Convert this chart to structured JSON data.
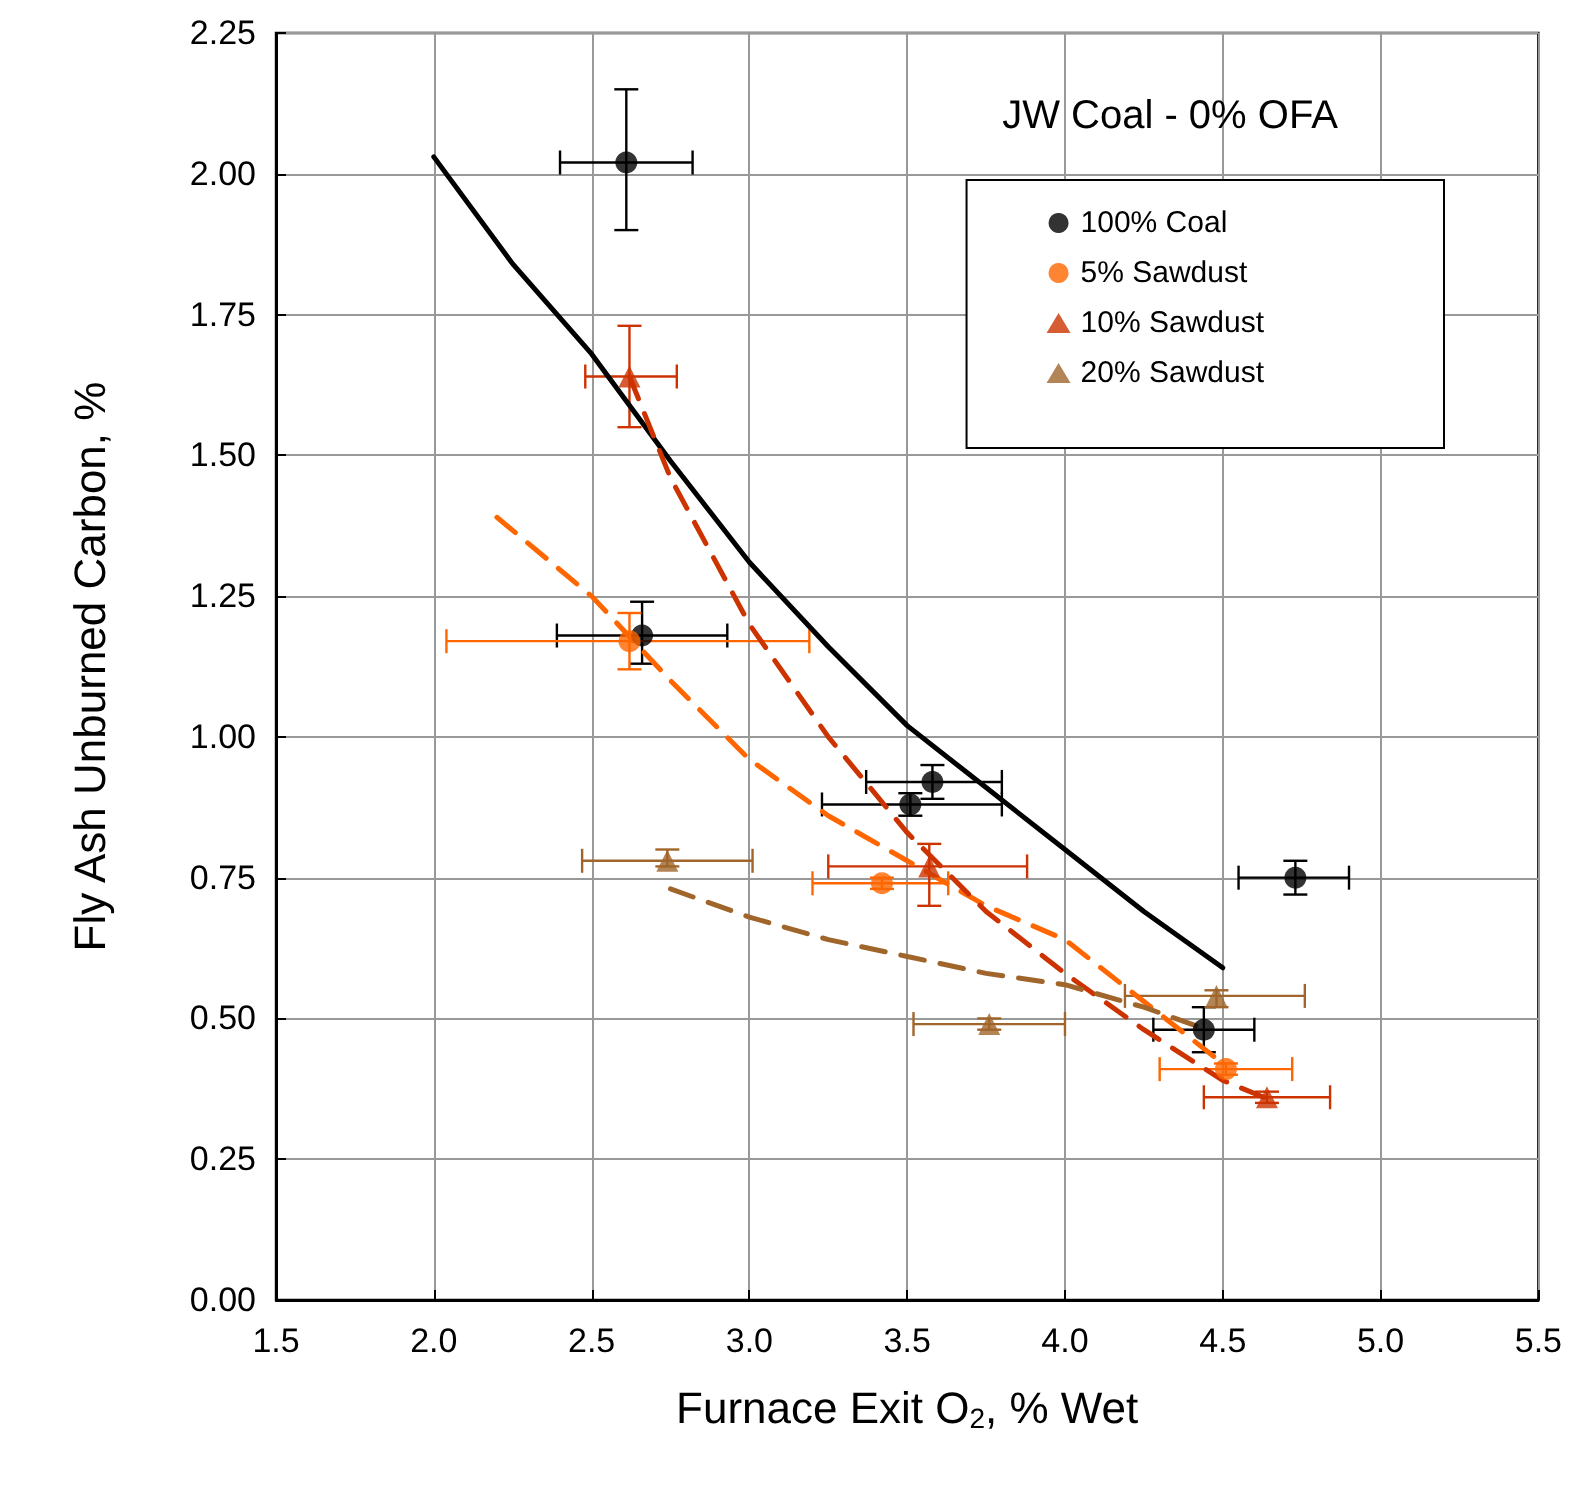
{
  "chart_data": {
    "type": "scatter",
    "xlabel": "Furnace Exit O$_{2}$, % Wet",
    "ylabel": "Fly Ash Unburned Carbon, %",
    "legend_title": "JW Coal - 0% OFA",
    "xlim": [
      1.5,
      5.5
    ],
    "xticks": [
      {
        "value": 1.5,
        "label": "1.5"
      },
      {
        "value": 2,
        "label": "2.0"
      },
      {
        "value": 2.5,
        "label": "2.5"
      },
      {
        "value": 3,
        "label": "3.0"
      },
      {
        "value": 3.5,
        "label": "3.5"
      },
      {
        "value": 4,
        "label": "4.0"
      },
      {
        "value": 4.5,
        "label": "4.5"
      },
      {
        "value": 5,
        "label": "5.0"
      },
      {
        "value": 5.5,
        "label": "5.5"
      }
    ],
    "ylim": [
      0,
      2.25
    ],
    "yticks": [
      {
        "value": 0,
        "label": "0.00"
      },
      {
        "value": 0.25,
        "label": "0.25"
      },
      {
        "value": 0.5,
        "label": "0.50"
      },
      {
        "value": 0.75,
        "label": "0.75"
      },
      {
        "value": 1,
        "label": "1.00"
      },
      {
        "value": 1.25,
        "label": "1.25"
      },
      {
        "value": 1.5,
        "label": "1.50"
      },
      {
        "value": 1.75,
        "label": "1.75"
      },
      {
        "value": 2,
        "label": "2.00"
      },
      {
        "value": 2.25,
        "label": "2.25"
      }
    ],
    "grid": true,
    "legend": "top right",
    "series": [
      {
        "name": "100% Coal",
        "color": "#000000",
        "marker": "circle",
        "x": [
          2.61,
          2.66,
          3.58,
          3.51,
          4.44,
          4.73
        ],
        "values": [
          2.02,
          1.18,
          0.92,
          0.88,
          0.48,
          0.75
        ],
        "errors": [
          [
            1.9,
            2.15
          ],
          [
            1.13,
            1.24
          ],
          [
            0.89,
            0.95
          ],
          [
            0.86,
            0.9
          ],
          [
            0.44,
            0.52
          ],
          [
            0.72,
            0.78
          ]
        ],
        "xerrors": [
          [
            2.4,
            2.82
          ],
          [
            2.39,
            2.93
          ],
          [
            3.37,
            3.8
          ],
          [
            3.23,
            3.8
          ],
          [
            4.28,
            4.6
          ],
          [
            4.55,
            4.9
          ]
        ]
      },
      {
        "name": "5% Sawdust",
        "color": "#ff6600",
        "marker": "circle",
        "x": [
          2.62,
          3.42,
          4.51
        ],
        "values": [
          1.17,
          0.74,
          0.41
        ],
        "errors": [
          [
            1.12,
            1.22
          ],
          [
            0.73,
            0.75
          ],
          [
            0.4,
            0.42
          ]
        ],
        "xerrors": [
          [
            2.04,
            3.19
          ],
          [
            3.2,
            3.63
          ],
          [
            4.3,
            4.72
          ]
        ]
      },
      {
        "name": "10% Sawdust",
        "color": "#cc3300",
        "marker": "triangle",
        "x": [
          2.62,
          3.57,
          4.64
        ],
        "values": [
          1.64,
          0.77,
          0.36
        ],
        "errors": [
          [
            1.55,
            1.73
          ],
          [
            0.7,
            0.81
          ],
          [
            0.35,
            0.37
          ]
        ],
        "xerrors": [
          [
            2.48,
            2.77
          ],
          [
            3.25,
            3.88
          ],
          [
            4.44,
            4.84
          ]
        ]
      },
      {
        "name": "20% Sawdust",
        "color": "#a0652b",
        "marker": "triangle",
        "x": [
          2.74,
          3.76,
          4.48
        ],
        "values": [
          0.78,
          0.49,
          0.54
        ],
        "errors": [
          [
            0.77,
            0.8
          ],
          [
            0.48,
            0.5
          ],
          [
            0.52,
            0.55
          ]
        ],
        "xerrors": [
          [
            2.47,
            3.01
          ],
          [
            3.52,
            4.0
          ],
          [
            4.19,
            4.76
          ]
        ]
      },
      {
        "type": "line",
        "color": "#000000",
        "line_style": "solid",
        "x": [
          2.0,
          2.25,
          2.5,
          2.75,
          3.0,
          3.25,
          3.5,
          3.75,
          4.0,
          4.25,
          4.5
        ],
        "values": [
          2.03,
          1.84,
          1.68,
          1.49,
          1.31,
          1.16,
          1.02,
          0.91,
          0.8,
          0.69,
          0.59
        ]
      },
      {
        "type": "line",
        "color": "#ff6600",
        "line_style": "dashed",
        "x": [
          2.2,
          2.5,
          2.75,
          3.0,
          3.25,
          3.5,
          3.75,
          4.0,
          4.25,
          4.5
        ],
        "values": [
          1.39,
          1.25,
          1.1,
          0.96,
          0.86,
          0.78,
          0.7,
          0.64,
          0.53,
          0.42
        ]
      },
      {
        "type": "line",
        "color": "#cc3300",
        "line_style": "dashed",
        "x": [
          2.62,
          2.75,
          3.0,
          3.25,
          3.5,
          3.75,
          4.0,
          4.25,
          4.5,
          4.63
        ],
        "values": [
          1.64,
          1.46,
          1.2,
          1.0,
          0.83,
          0.69,
          0.58,
          0.48,
          0.39,
          0.36
        ]
      },
      {
        "type": "line",
        "color": "#a0652b",
        "line_style": "dashed",
        "x": [
          2.75,
          3.0,
          3.25,
          3.5,
          3.75,
          4.0,
          4.25,
          4.45
        ],
        "values": [
          0.73,
          0.68,
          0.64,
          0.61,
          0.58,
          0.56,
          0.52,
          0.48
        ]
      }
    ]
  }
}
